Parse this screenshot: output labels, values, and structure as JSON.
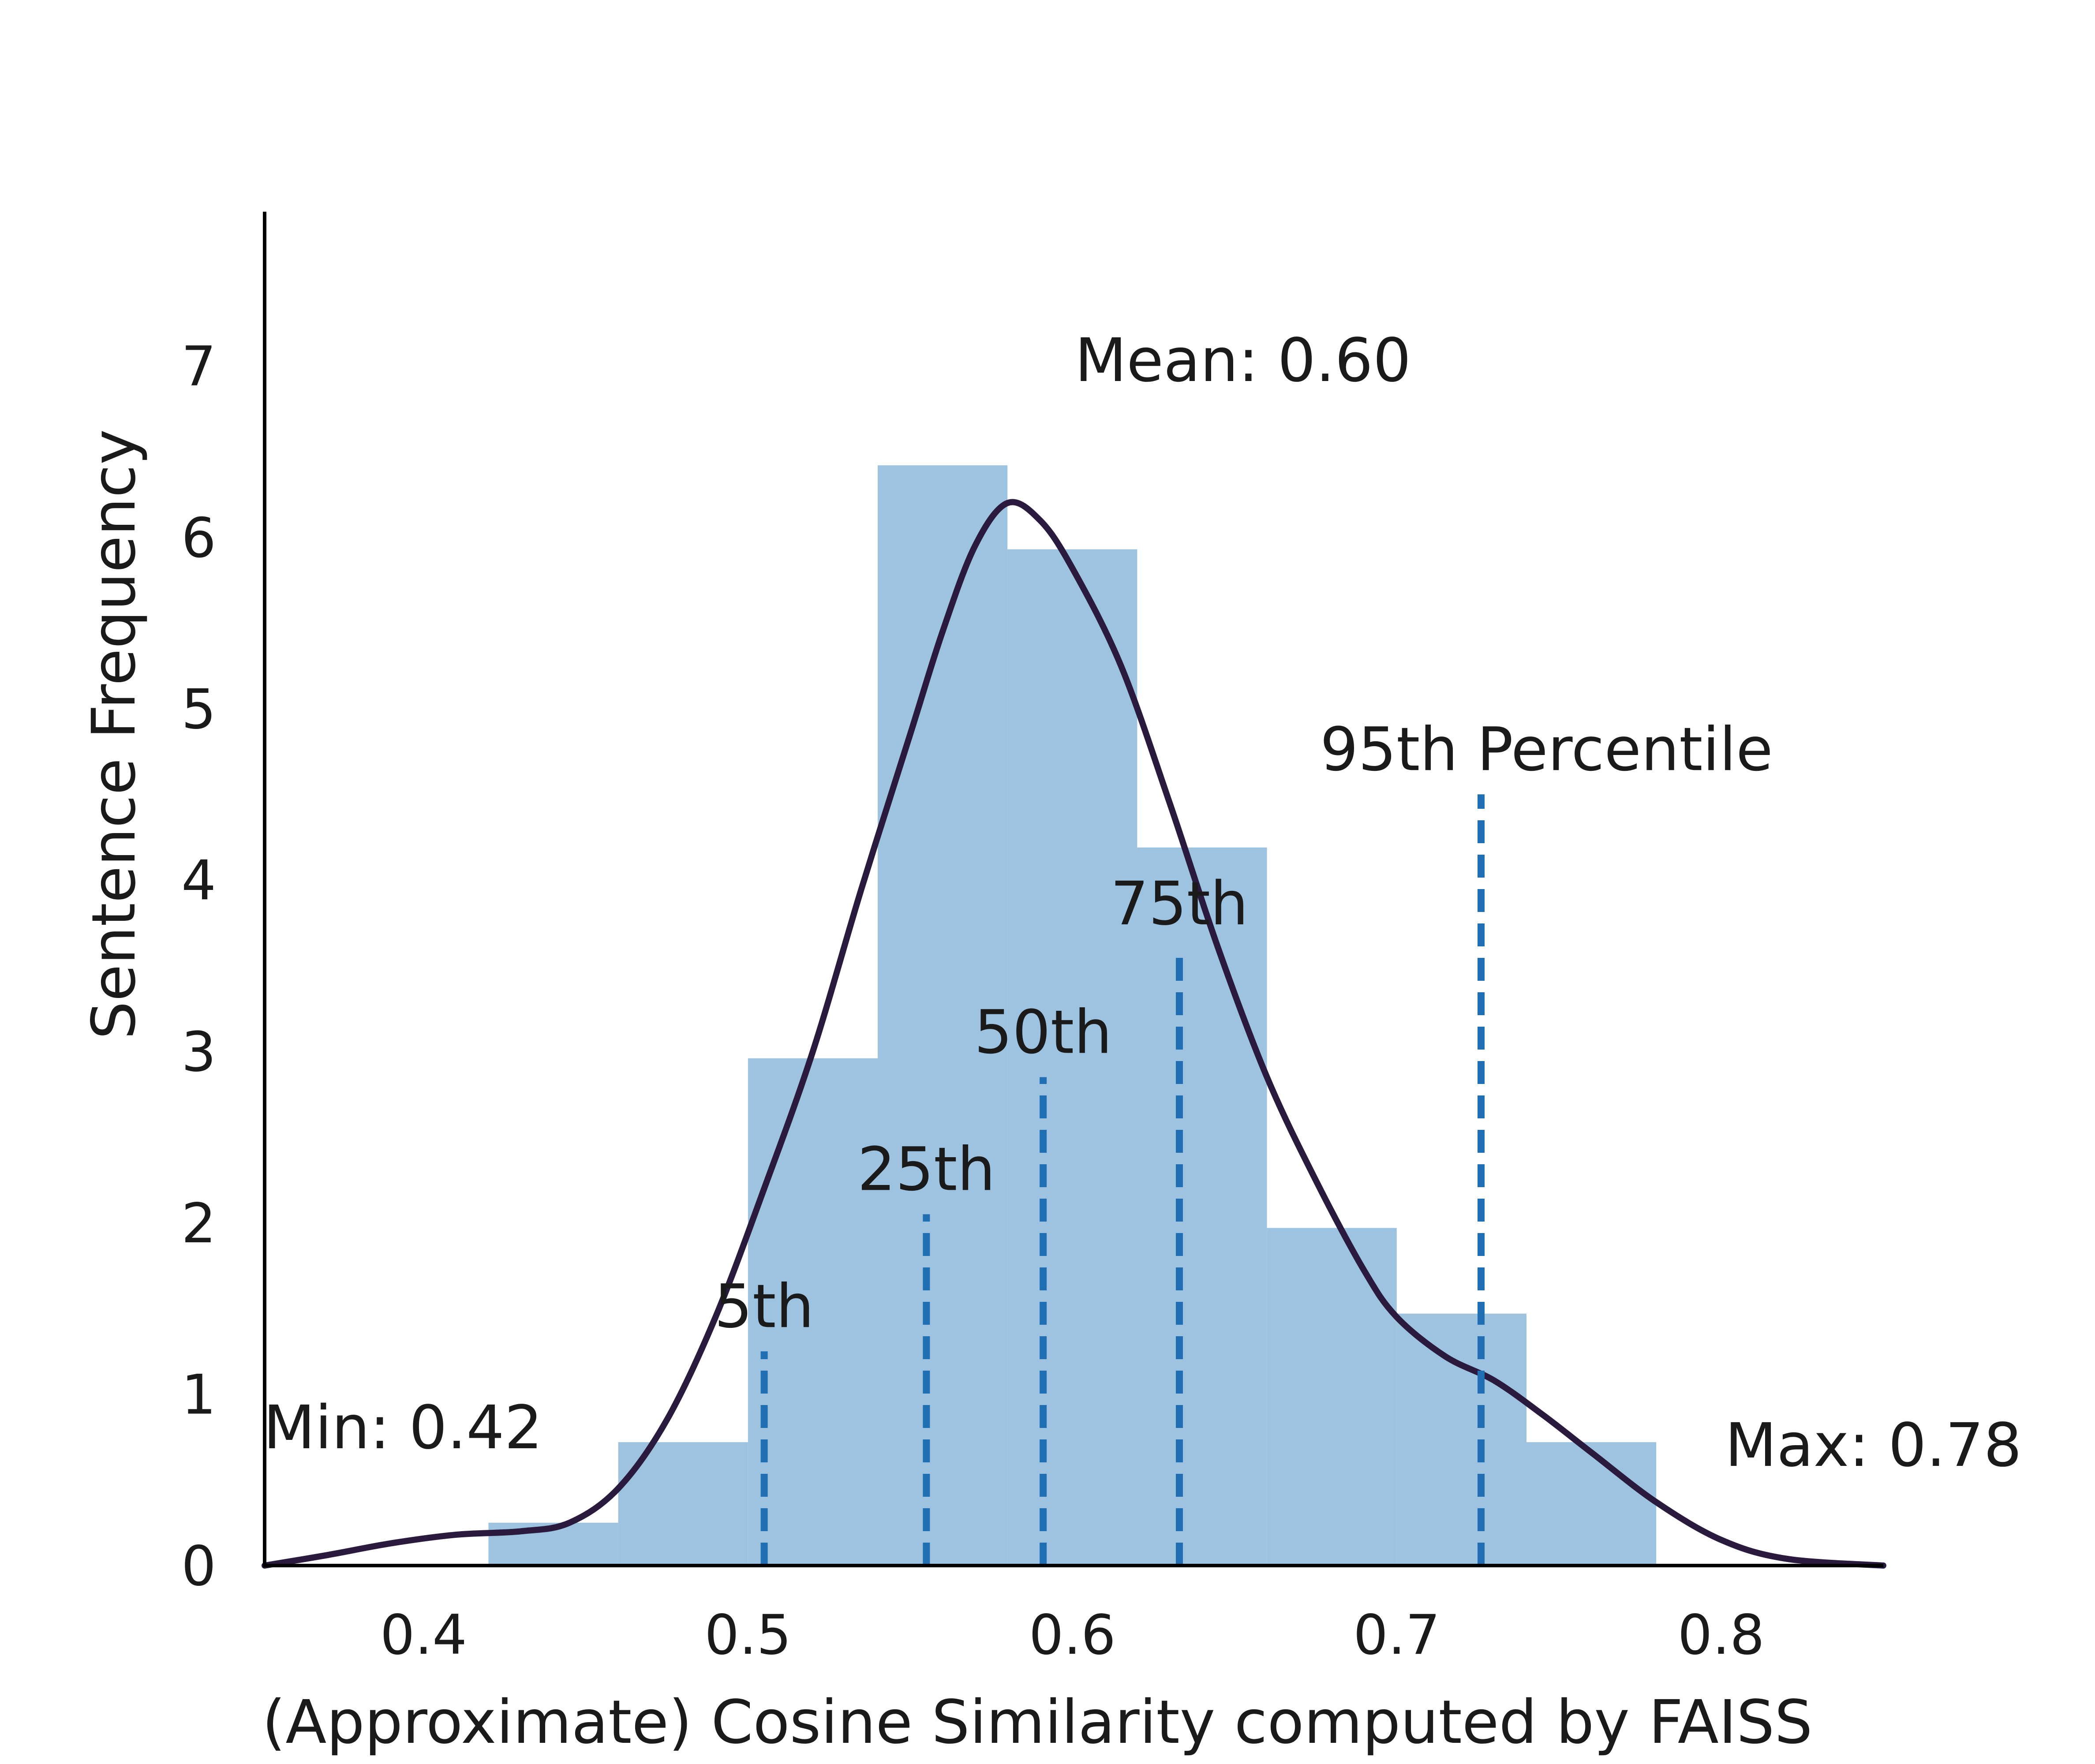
{
  "chart_data": {
    "type": "bar",
    "title": "",
    "xlabel": "(Approximate) Cosine Similarity computed by FAISS",
    "ylabel": "Sentence Frequency",
    "xlim": [
      0.351,
      0.85
    ],
    "ylim": [
      0,
      7.9
    ],
    "x_ticks": [
      {
        "value": 0.4,
        "label": "0.4"
      },
      {
        "value": 0.5,
        "label": "0.5"
      },
      {
        "value": 0.6,
        "label": "0.6"
      },
      {
        "value": 0.7,
        "label": "0.7"
      },
      {
        "value": 0.8,
        "label": "0.8"
      }
    ],
    "y_ticks": [
      {
        "value": 0,
        "label": "0"
      },
      {
        "value": 1,
        "label": "1"
      },
      {
        "value": 2,
        "label": "2"
      },
      {
        "value": 3,
        "label": "3"
      },
      {
        "value": 4,
        "label": "4"
      },
      {
        "value": 5,
        "label": "5"
      },
      {
        "value": 6,
        "label": "6"
      },
      {
        "value": 7,
        "label": "7"
      }
    ],
    "histogram": {
      "color": "#9dc3e1",
      "bins": [
        {
          "x0": 0.42,
          "x1": 0.46,
          "count": 0.25
        },
        {
          "x0": 0.46,
          "x1": 0.5,
          "count": 0.72
        },
        {
          "x0": 0.5,
          "x1": 0.54,
          "count": 2.96
        },
        {
          "x0": 0.54,
          "x1": 0.58,
          "count": 6.42
        },
        {
          "x0": 0.58,
          "x1": 0.62,
          "count": 5.93
        },
        {
          "x0": 0.62,
          "x1": 0.66,
          "count": 4.19
        },
        {
          "x0": 0.66,
          "x1": 0.7,
          "count": 1.97
        },
        {
          "x0": 0.7,
          "x1": 0.74,
          "count": 1.47
        },
        {
          "x0": 0.74,
          "x1": 0.78,
          "count": 0.72
        }
      ]
    },
    "kde": {
      "color": "#2a1a3e",
      "points": [
        [
          0.351,
          0.0
        ],
        [
          0.37,
          0.06
        ],
        [
          0.39,
          0.13
        ],
        [
          0.41,
          0.18
        ],
        [
          0.43,
          0.2
        ],
        [
          0.445,
          0.25
        ],
        [
          0.46,
          0.45
        ],
        [
          0.475,
          0.85
        ],
        [
          0.49,
          1.45
        ],
        [
          0.505,
          2.2
        ],
        [
          0.52,
          3.0
        ],
        [
          0.535,
          3.95
        ],
        [
          0.55,
          4.85
        ],
        [
          0.56,
          5.45
        ],
        [
          0.57,
          5.95
        ],
        [
          0.58,
          6.2
        ],
        [
          0.59,
          6.1
        ],
        [
          0.6,
          5.82
        ],
        [
          0.615,
          5.25
        ],
        [
          0.63,
          4.45
        ],
        [
          0.645,
          3.6
        ],
        [
          0.66,
          2.85
        ],
        [
          0.675,
          2.25
        ],
        [
          0.69,
          1.72
        ],
        [
          0.7,
          1.45
        ],
        [
          0.715,
          1.22
        ],
        [
          0.73,
          1.08
        ],
        [
          0.745,
          0.88
        ],
        [
          0.76,
          0.66
        ],
        [
          0.78,
          0.37
        ],
        [
          0.8,
          0.15
        ],
        [
          0.82,
          0.04
        ],
        [
          0.85,
          0.0
        ]
      ]
    },
    "percentiles": {
      "color": "#1f6fb2",
      "lines": [
        {
          "name": "5th",
          "label": "5th",
          "x": 0.505,
          "top": 1.25
        },
        {
          "name": "25th",
          "label": "25th",
          "x": 0.555,
          "top": 2.05
        },
        {
          "name": "50th",
          "label": "50th",
          "x": 0.591,
          "top": 2.85
        },
        {
          "name": "75th",
          "label": "75th",
          "x": 0.633,
          "top": 3.6
        },
        {
          "name": "95th",
          "label": "95th Percentile",
          "x": 0.726,
          "top": 4.5
        }
      ]
    },
    "annotations": {
      "mean": "Mean: 0.60",
      "min": "Min: 0.42",
      "max": "Max: 0.78"
    }
  }
}
